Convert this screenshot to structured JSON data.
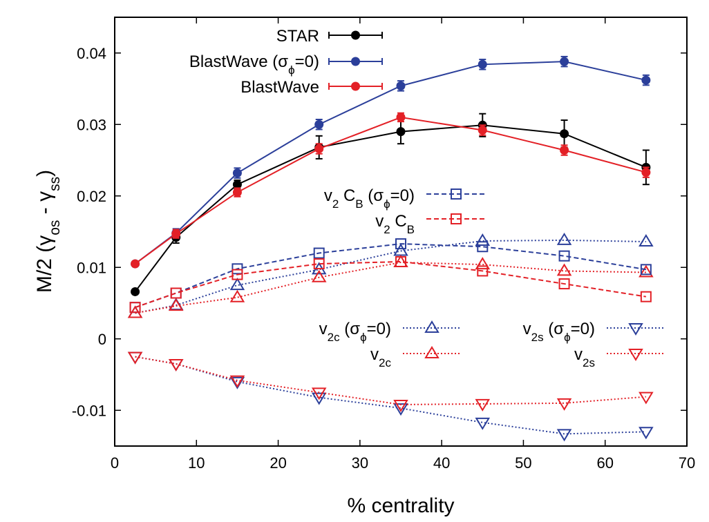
{
  "chart_data": {
    "type": "line",
    "title": "",
    "xlabel": "% centrality",
    "ylabel": "M/2 (γos - γss)",
    "ylabel_parts": {
      "prefix": "M/2 (γ",
      "sub1": "os",
      "mid": " - γ",
      "sub2": "ss",
      "suffix": ")"
    },
    "xlim": [
      0,
      70
    ],
    "ylim": [
      -0.015,
      0.045
    ],
    "xticks": [
      0,
      10,
      20,
      30,
      40,
      50,
      60,
      70
    ],
    "yticks": [
      -0.01,
      0,
      0.01,
      0.02,
      0.03,
      0.04
    ],
    "ytick_labels": [
      "-0.01",
      "0",
      "0.01",
      "0.02",
      "0.03",
      "0.04"
    ],
    "grid": false,
    "legend": "in-plot",
    "series": [
      {
        "id": "star",
        "name": "STAR",
        "legend": {
          "text": "STAR"
        },
        "color": "#000000",
        "marker": "filled-circle",
        "line": "solid",
        "x": [
          2.5,
          7.5,
          15,
          25,
          35,
          45,
          55,
          65
        ],
        "y": [
          0.0066,
          0.0142,
          0.0216,
          0.0268,
          0.029,
          0.0299,
          0.0287,
          0.024
        ],
        "err": [
          0,
          0.0008,
          0.0006,
          0.0016,
          0.0017,
          0.0016,
          0.0019,
          0.0024
        ]
      },
      {
        "id": "bw0",
        "name": "BlastWave (σϕ=0)",
        "legend": {
          "pre": "BlastWave (σ",
          "sub": "ϕ",
          "post": "=0)"
        },
        "color": "#2b3f9a",
        "marker": "filled-circle",
        "line": "solid",
        "x": [
          2.5,
          7.5,
          15,
          25,
          35,
          45,
          55,
          65
        ],
        "y": [
          0.0105,
          0.0148,
          0.0232,
          0.03,
          0.0354,
          0.0384,
          0.0388,
          0.0362
        ],
        "err": [
          0,
          0.0006,
          0.0007,
          0.0007,
          0.0007,
          0.0007,
          0.0007,
          0.0007
        ]
      },
      {
        "id": "bw",
        "name": "BlastWave",
        "legend": {
          "text": "BlastWave"
        },
        "color": "#e32026",
        "marker": "filled-circle",
        "line": "solid",
        "x": [
          2.5,
          7.5,
          15,
          25,
          35,
          45,
          55,
          65
        ],
        "y": [
          0.0105,
          0.0147,
          0.0205,
          0.0266,
          0.031,
          0.0292,
          0.0264,
          0.0233
        ],
        "err": [
          0,
          0.0006,
          0.0006,
          0.0007,
          0.0006,
          0.0007,
          0.0007,
          0.0007
        ]
      },
      {
        "id": "v2cb0",
        "name": "v2 CB (σϕ=0)",
        "legend": {
          "pre": "v",
          "sub": "2",
          "mid": " C",
          "sub2": "B",
          "mid2": " (σ",
          "sub3": "ϕ",
          "post": "=0)"
        },
        "color": "#2b3f9a",
        "marker": "open-square",
        "line": "dashed",
        "x": [
          2.5,
          7.5,
          15,
          25,
          35,
          45,
          55,
          65
        ],
        "y": [
          0.0044,
          0.0064,
          0.0098,
          0.012,
          0.0133,
          0.0129,
          0.0116,
          0.0097
        ]
      },
      {
        "id": "v2cb",
        "name": "v2 CB",
        "legend": {
          "pre": "v",
          "sub": "2",
          "mid": " C",
          "sub2": "B"
        },
        "color": "#e32026",
        "marker": "open-square",
        "line": "dashed",
        "x": [
          2.5,
          7.5,
          15,
          25,
          35,
          45,
          55,
          65
        ],
        "y": [
          0.0044,
          0.0064,
          0.009,
          0.0105,
          0.0108,
          0.0095,
          0.0077,
          0.0059
        ]
      },
      {
        "id": "v2c0",
        "name": "v2c (σϕ=0)",
        "legend": {
          "pre": "v",
          "sub": "2c",
          "mid": " (σ",
          "sub3": "ϕ",
          "post": "=0)"
        },
        "color": "#2b3f9a",
        "marker": "open-triangle-up",
        "line": "dotted",
        "x": [
          2.5,
          7.5,
          15,
          25,
          35,
          45,
          55,
          65
        ],
        "y": [
          0.0036,
          0.0047,
          0.0075,
          0.0097,
          0.0123,
          0.0137,
          0.0138,
          0.0136
        ]
      },
      {
        "id": "v2c",
        "name": "v2c",
        "legend": {
          "pre": "v",
          "sub": "2c"
        },
        "color": "#e32026",
        "marker": "open-triangle-up",
        "line": "dotted",
        "x": [
          2.5,
          7.5,
          15,
          25,
          35,
          45,
          55,
          65
        ],
        "y": [
          0.0036,
          0.0046,
          0.0058,
          0.0086,
          0.0107,
          0.0104,
          0.0095,
          0.0093
        ]
      },
      {
        "id": "v2s0",
        "name": "v2s (σϕ=0)",
        "legend": {
          "pre": "v",
          "sub": "2s",
          "mid": " (σ",
          "sub3": "ϕ",
          "post": "=0)"
        },
        "color": "#2b3f9a",
        "marker": "open-triangle-down",
        "line": "dotted",
        "x": [
          2.5,
          7.5,
          15,
          25,
          35,
          45,
          55,
          65
        ],
        "y": [
          -0.0025,
          -0.0035,
          -0.006,
          -0.0082,
          -0.0097,
          -0.0117,
          -0.0133,
          -0.013
        ]
      },
      {
        "id": "v2s",
        "name": "v2s",
        "legend": {
          "pre": "v",
          "sub": "2s"
        },
        "color": "#e32026",
        "marker": "open-triangle-down",
        "line": "dotted",
        "x": [
          2.5,
          7.5,
          15,
          25,
          35,
          45,
          55,
          65
        ],
        "y": [
          -0.0025,
          -0.0035,
          -0.0058,
          -0.0075,
          -0.0092,
          -0.0091,
          -0.009,
          -0.0081
        ]
      }
    ]
  }
}
